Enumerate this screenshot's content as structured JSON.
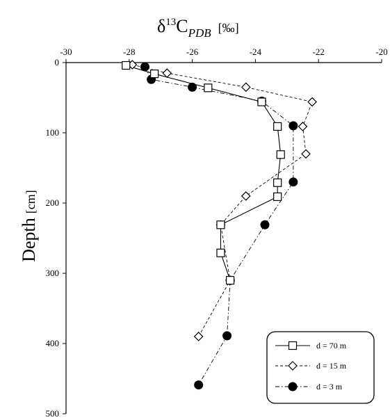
{
  "chart_data": {
    "type": "scatter",
    "title": "",
    "xlabel": {
      "main": "δ",
      "sup": "13",
      "mid": "C",
      "sub": "PDB",
      "unit": "[‰]"
    },
    "ylabel": {
      "main": "Depth",
      "unit": "[cm]"
    },
    "xlim": [
      -30,
      -20
    ],
    "ylim": [
      0,
      500
    ],
    "y_inverted": true,
    "x_axis_position": "top",
    "x_ticks": [
      -30,
      -28,
      -26,
      -24,
      -22,
      -20
    ],
    "y_ticks": [
      0,
      100,
      200,
      300,
      400,
      500
    ],
    "grid": false,
    "legend_position": "bottom-right",
    "series": [
      {
        "name": "d = 70 m",
        "marker": "open-square",
        "line": "solid",
        "points": [
          {
            "x": -28.1,
            "y": 4
          },
          {
            "x": -27.2,
            "y": 16
          },
          {
            "x": -25.5,
            "y": 36
          },
          {
            "x": -23.8,
            "y": 56
          },
          {
            "x": -23.3,
            "y": 91
          },
          {
            "x": -23.2,
            "y": 131
          },
          {
            "x": -23.3,
            "y": 171
          },
          {
            "x": -23.3,
            "y": 191
          },
          {
            "x": -25.1,
            "y": 231
          },
          {
            "x": -25.1,
            "y": 271
          },
          {
            "x": -24.8,
            "y": 310
          }
        ]
      },
      {
        "name": "d = 15 m",
        "marker": "open-diamond",
        "line": "dashed",
        "points": [
          {
            "x": -27.9,
            "y": 3
          },
          {
            "x": -26.8,
            "y": 15
          },
          {
            "x": -24.3,
            "y": 35
          },
          {
            "x": -22.2,
            "y": 56
          },
          {
            "x": -22.5,
            "y": 91
          },
          {
            "x": -22.4,
            "y": 130
          },
          {
            "x": -24.3,
            "y": 190
          },
          {
            "x": -25.1,
            "y": 231
          },
          {
            "x": -24.8,
            "y": 310
          },
          {
            "x": -25.8,
            "y": 390
          }
        ]
      },
      {
        "name": "d = 3 m",
        "marker": "filled-circle",
        "line": "dash-dot",
        "points": [
          {
            "x": -27.5,
            "y": 6
          },
          {
            "x": -27.3,
            "y": 24
          },
          {
            "x": -26.0,
            "y": 35
          },
          {
            "x": -23.8,
            "y": 55
          },
          {
            "x": -22.8,
            "y": 90
          },
          {
            "x": -22.8,
            "y": 170
          },
          {
            "x": -23.7,
            "y": 231
          },
          {
            "x": -24.8,
            "y": 310
          },
          {
            "x": -24.9,
            "y": 389
          },
          {
            "x": -25.8,
            "y": 459
          }
        ]
      }
    ]
  }
}
